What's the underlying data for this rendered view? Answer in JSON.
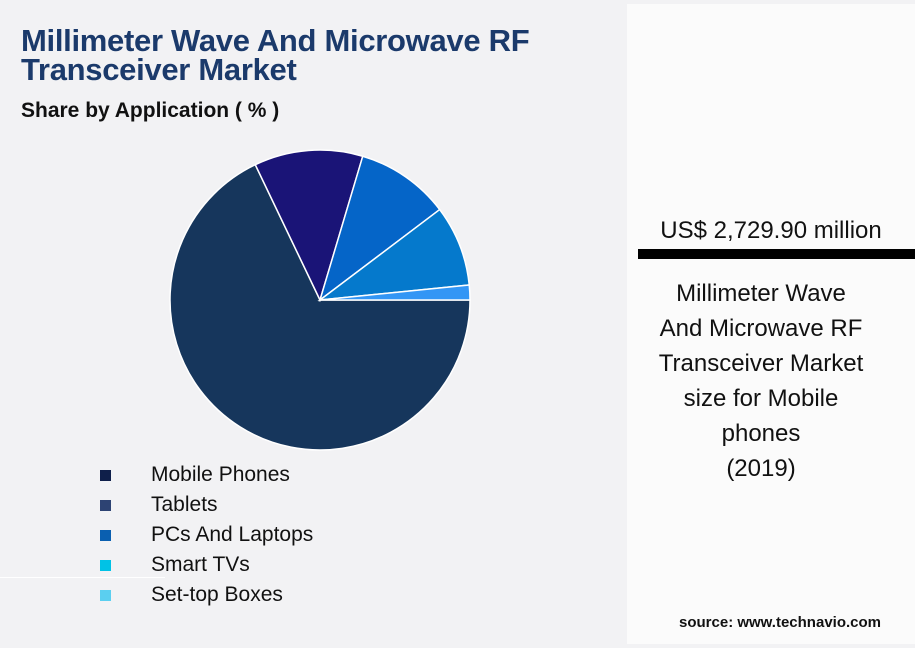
{
  "header": {
    "title": "Millimeter Wave And Microwave RF Transceiver Market",
    "subtitle": "Share by Application ( % )"
  },
  "colors": {
    "title": "#1b3a6b",
    "mobile_phones": "#16365c",
    "tablets": "#1a1477",
    "pcs_and_laptops": "#0565c8",
    "smart_tvs": "#0579cc",
    "set_top_boxes": "#3396f5",
    "legend_mobile_phones": "#0f1f4a",
    "legend_tablets": "#2d4373",
    "legend_pcs_and_laptops": "#0a5fb0",
    "legend_smart_tvs": "#00c2e6",
    "legend_set_top_boxes": "#5bcff0"
  },
  "legend": {
    "items": [
      {
        "label": "Mobile Phones",
        "color": "#0f1f4a"
      },
      {
        "label": "Tablets",
        "color": "#2d4373"
      },
      {
        "label": "PCs And Laptops",
        "color": "#0a5fb0"
      },
      {
        "label": "Smart TVs",
        "color": "#00c2e6"
      },
      {
        "label": "Set-top Boxes",
        "color": "#5bcff0"
      }
    ]
  },
  "panel": {
    "kpi_value": "US$ 2,729.90 million",
    "kpi_description": "Millimeter Wave\nAnd Microwave RF\nTransceiver Market\nsize for Mobile\nphones\n(2019)",
    "source": "source: www.technavio.com"
  },
  "chart_data": {
    "type": "pie",
    "title": "Millimeter Wave And Microwave RF Transceiver Market",
    "subtitle": "Share by Application ( % )",
    "categories": [
      "Mobile Phones",
      "Tablets",
      "PCs And Laptops",
      "Smart TVs",
      "Set-top Boxes"
    ],
    "values": [
      67.9,
      11.7,
      10.1,
      8.7,
      1.6
    ],
    "slice_colors": [
      "#16365c",
      "#1a1477",
      "#0565c8",
      "#0579cc",
      "#3396f5"
    ],
    "start_angle_deg": 90,
    "direction": "counterclockwise-from-east (Mobile Phones spans east through bottom and left)",
    "legend_position": "bottom-left",
    "data_labels": false,
    "annotation": "US$ 2,729.90 million — Mobile phones segment size (2019)"
  }
}
